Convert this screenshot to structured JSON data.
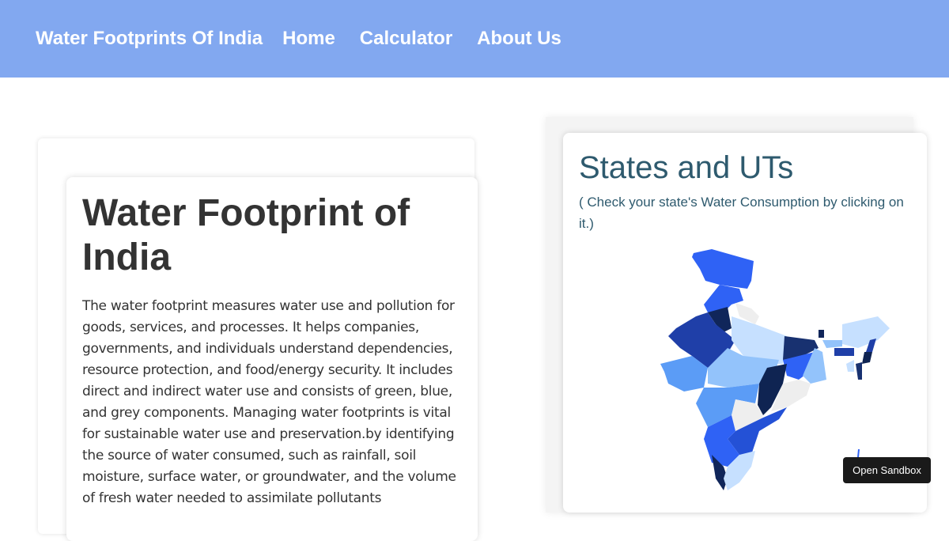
{
  "nav": {
    "brand": "Water Footprints Of India",
    "links": [
      "Home",
      "Calculator",
      "About Us"
    ],
    "background": "#82a8f0"
  },
  "intro": {
    "title": "Water Footprint of India",
    "body": "The water footprint measures water use and pollution for goods, services, and processes. It helps companies, governments, and individuals understand dependencies, resource protection, and food/energy security. It includes direct and indirect water use and consists of green, blue, and grey components. Managing water footprints is vital for sustainable water use and preservation.by identifying the source of water consumed, such as rainfall, soil moisture, surface water, or groundwater, and the volume of fresh water needed to assimilate pollutants"
  },
  "map_panel": {
    "title": "States and UTs",
    "subtitle": "( Check your state's Water Consumption by clicking on it.)",
    "palette": [
      "#eeeeee",
      "#c6e0ff",
      "#93c3fb",
      "#5b9cf6",
      "#2f62f5",
      "#2451d6",
      "#1f3fa8",
      "#183170",
      "#0f2452"
    ]
  },
  "sandbox_button": "Open Sandbox"
}
